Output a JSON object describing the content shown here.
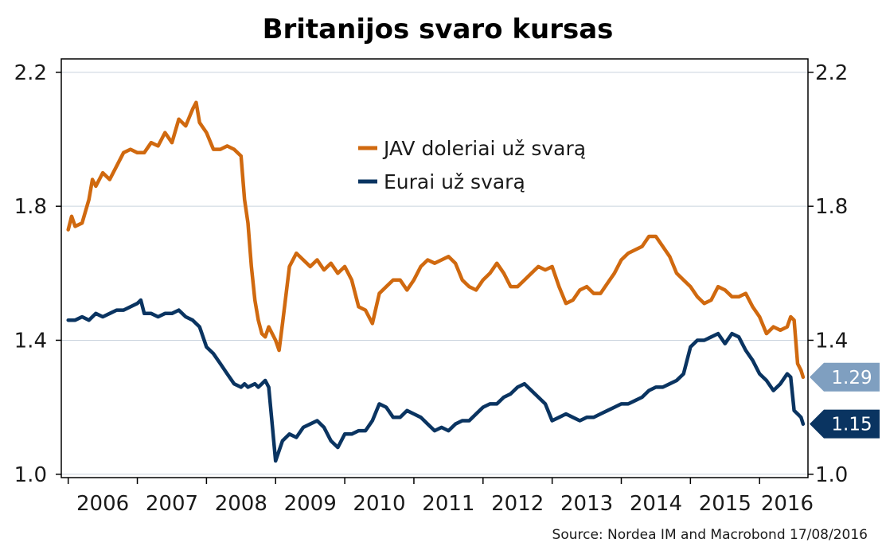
{
  "chart_data": {
    "type": "line",
    "title": "Britanijos svaro kursas",
    "source": "Source: Nordea IM and Macrobond 17/08/2016",
    "xlabel": "",
    "ylabel": "",
    "xlim": [
      2005.9,
      2016.7
    ],
    "ylim": [
      0.99,
      2.24
    ],
    "y_ticks": [
      "1.0",
      "1.4",
      "1.8",
      "2.2"
    ],
    "y_tick_values": [
      1.0,
      1.4,
      1.8,
      2.2
    ],
    "x_tick_labels": [
      "2006",
      "2007",
      "2008",
      "2009",
      "2010",
      "2011",
      "2012",
      "2013",
      "2014",
      "2015",
      "2016"
    ],
    "x_label_positions": [
      2006.5,
      2007.5,
      2008.5,
      2009.5,
      2010.5,
      2011.5,
      2012.5,
      2013.5,
      2014.5,
      2015.5,
      2016.4
    ],
    "x_tick_values": [
      2006,
      2007,
      2008,
      2009,
      2010,
      2011,
      2012,
      2013,
      2014,
      2015,
      2016
    ],
    "grid": true,
    "legend_position": "top-center",
    "series": [
      {
        "name": "JAV doleriai už svarą",
        "color": "#d0690f",
        "end_label": "1.29",
        "label_color": "#7f9fc0",
        "x": [
          2006.0,
          2006.05,
          2006.1,
          2006.2,
          2006.3,
          2006.35,
          2006.4,
          2006.5,
          2006.6,
          2006.7,
          2006.8,
          2006.9,
          2007.0,
          2007.1,
          2007.2,
          2007.3,
          2007.4,
          2007.5,
          2007.6,
          2007.7,
          2007.8,
          2007.85,
          2007.9,
          2008.0,
          2008.1,
          2008.2,
          2008.3,
          2008.4,
          2008.5,
          2008.55,
          2008.6,
          2008.65,
          2008.7,
          2008.75,
          2008.8,
          2008.85,
          2008.9,
          2009.0,
          2009.05,
          2009.1,
          2009.2,
          2009.3,
          2009.4,
          2009.5,
          2009.6,
          2009.7,
          2009.8,
          2009.9,
          2010.0,
          2010.1,
          2010.2,
          2010.3,
          2010.4,
          2010.5,
          2010.6,
          2010.7,
          2010.8,
          2010.9,
          2011.0,
          2011.1,
          2011.2,
          2011.3,
          2011.4,
          2011.5,
          2011.6,
          2011.7,
          2011.8,
          2011.9,
          2012.0,
          2012.1,
          2012.2,
          2012.3,
          2012.4,
          2012.5,
          2012.6,
          2012.7,
          2012.8,
          2012.9,
          2013.0,
          2013.1,
          2013.2,
          2013.3,
          2013.4,
          2013.5,
          2013.6,
          2013.7,
          2013.8,
          2013.9,
          2014.0,
          2014.1,
          2014.2,
          2014.3,
          2014.4,
          2014.5,
          2014.6,
          2014.7,
          2014.8,
          2014.9,
          2015.0,
          2015.1,
          2015.2,
          2015.3,
          2015.4,
          2015.5,
          2015.6,
          2015.7,
          2015.8,
          2015.9,
          2016.0,
          2016.1,
          2016.2,
          2016.3,
          2016.4,
          2016.45,
          2016.5,
          2016.55,
          2016.6,
          2016.63
        ],
        "values": [
          1.73,
          1.77,
          1.74,
          1.75,
          1.82,
          1.88,
          1.86,
          1.9,
          1.88,
          1.92,
          1.96,
          1.97,
          1.96,
          1.96,
          1.99,
          1.98,
          2.02,
          1.99,
          2.06,
          2.04,
          2.09,
          2.11,
          2.05,
          2.02,
          1.97,
          1.97,
          1.98,
          1.97,
          1.95,
          1.82,
          1.75,
          1.62,
          1.52,
          1.46,
          1.42,
          1.41,
          1.44,
          1.4,
          1.37,
          1.45,
          1.62,
          1.66,
          1.64,
          1.62,
          1.64,
          1.61,
          1.63,
          1.6,
          1.62,
          1.58,
          1.5,
          1.49,
          1.45,
          1.54,
          1.56,
          1.58,
          1.58,
          1.55,
          1.58,
          1.62,
          1.64,
          1.63,
          1.64,
          1.65,
          1.63,
          1.58,
          1.56,
          1.55,
          1.58,
          1.6,
          1.63,
          1.6,
          1.56,
          1.56,
          1.58,
          1.6,
          1.62,
          1.61,
          1.62,
          1.56,
          1.51,
          1.52,
          1.55,
          1.56,
          1.54,
          1.54,
          1.57,
          1.6,
          1.64,
          1.66,
          1.67,
          1.68,
          1.71,
          1.71,
          1.68,
          1.65,
          1.6,
          1.58,
          1.56,
          1.53,
          1.51,
          1.52,
          1.56,
          1.55,
          1.53,
          1.53,
          1.54,
          1.5,
          1.47,
          1.42,
          1.44,
          1.43,
          1.44,
          1.47,
          1.46,
          1.33,
          1.31,
          1.29
        ]
      },
      {
        "name": "Eurai už svarą",
        "color": "#0a3461",
        "end_label": "1.15",
        "label_color": "#0a3461",
        "x": [
          2006.0,
          2006.1,
          2006.2,
          2006.3,
          2006.4,
          2006.5,
          2006.6,
          2006.7,
          2006.8,
          2006.9,
          2007.0,
          2007.05,
          2007.1,
          2007.2,
          2007.3,
          2007.4,
          2007.5,
          2007.6,
          2007.7,
          2007.8,
          2007.9,
          2008.0,
          2008.1,
          2008.2,
          2008.3,
          2008.4,
          2008.5,
          2008.55,
          2008.6,
          2008.7,
          2008.75,
          2008.8,
          2008.85,
          2008.9,
          2008.95,
          2009.0,
          2009.1,
          2009.2,
          2009.3,
          2009.4,
          2009.5,
          2009.6,
          2009.7,
          2009.8,
          2009.9,
          2010.0,
          2010.1,
          2010.2,
          2010.3,
          2010.4,
          2010.5,
          2010.6,
          2010.7,
          2010.8,
          2010.9,
          2011.0,
          2011.1,
          2011.2,
          2011.3,
          2011.4,
          2011.5,
          2011.6,
          2011.7,
          2011.8,
          2011.9,
          2012.0,
          2012.1,
          2012.2,
          2012.3,
          2012.4,
          2012.5,
          2012.6,
          2012.7,
          2012.8,
          2012.9,
          2013.0,
          2013.1,
          2013.2,
          2013.3,
          2013.4,
          2013.5,
          2013.6,
          2013.7,
          2013.8,
          2013.9,
          2014.0,
          2014.1,
          2014.2,
          2014.3,
          2014.4,
          2014.5,
          2014.6,
          2014.7,
          2014.8,
          2014.9,
          2015.0,
          2015.1,
          2015.2,
          2015.3,
          2015.4,
          2015.5,
          2015.6,
          2015.7,
          2015.8,
          2015.9,
          2016.0,
          2016.1,
          2016.2,
          2016.3,
          2016.4,
          2016.45,
          2016.5,
          2016.55,
          2016.6,
          2016.63
        ],
        "values": [
          1.46,
          1.46,
          1.47,
          1.46,
          1.48,
          1.47,
          1.48,
          1.49,
          1.49,
          1.5,
          1.51,
          1.52,
          1.48,
          1.48,
          1.47,
          1.48,
          1.48,
          1.49,
          1.47,
          1.46,
          1.44,
          1.38,
          1.36,
          1.33,
          1.3,
          1.27,
          1.26,
          1.27,
          1.26,
          1.27,
          1.26,
          1.27,
          1.28,
          1.26,
          1.15,
          1.04,
          1.1,
          1.12,
          1.11,
          1.14,
          1.15,
          1.16,
          1.14,
          1.1,
          1.08,
          1.12,
          1.12,
          1.13,
          1.13,
          1.16,
          1.21,
          1.2,
          1.17,
          1.17,
          1.19,
          1.18,
          1.17,
          1.15,
          1.13,
          1.14,
          1.13,
          1.15,
          1.16,
          1.16,
          1.18,
          1.2,
          1.21,
          1.21,
          1.23,
          1.24,
          1.26,
          1.27,
          1.25,
          1.23,
          1.21,
          1.16,
          1.17,
          1.18,
          1.17,
          1.16,
          1.17,
          1.17,
          1.18,
          1.19,
          1.2,
          1.21,
          1.21,
          1.22,
          1.23,
          1.25,
          1.26,
          1.26,
          1.27,
          1.28,
          1.3,
          1.38,
          1.4,
          1.4,
          1.41,
          1.42,
          1.39,
          1.42,
          1.41,
          1.37,
          1.34,
          1.3,
          1.28,
          1.25,
          1.27,
          1.3,
          1.29,
          1.19,
          1.18,
          1.17,
          1.15
        ]
      }
    ]
  }
}
